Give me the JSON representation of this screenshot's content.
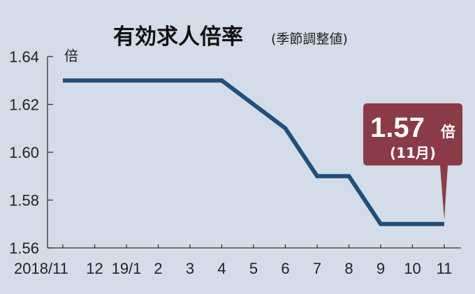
{
  "chart_data": {
    "type": "line",
    "title": "有効求人倍率",
    "subtitle": "(季節調整値)",
    "ylabel": "倍",
    "xlabel": "",
    "categories": [
      "2018/11",
      "12",
      "19/1",
      "2",
      "3",
      "4",
      "5",
      "6",
      "7",
      "8",
      "9",
      "10",
      "11"
    ],
    "series": [
      {
        "values": [
          1.63,
          1.63,
          1.63,
          1.63,
          1.63,
          1.63,
          1.62,
          1.61,
          1.59,
          1.59,
          1.57,
          1.57,
          1.57
        ]
      }
    ],
    "ylim": [
      1.56,
      1.64
    ],
    "yticks": [
      "1.56",
      "1.58",
      "1.60",
      "1.62",
      "1.64"
    ],
    "grid": false,
    "annotation": {
      "value": "1.57",
      "unit": "倍",
      "period": "(11月)"
    },
    "colors": {
      "line": "#1f4f7d",
      "callout": "#8a3b47",
      "background": "#d3dce8"
    }
  }
}
